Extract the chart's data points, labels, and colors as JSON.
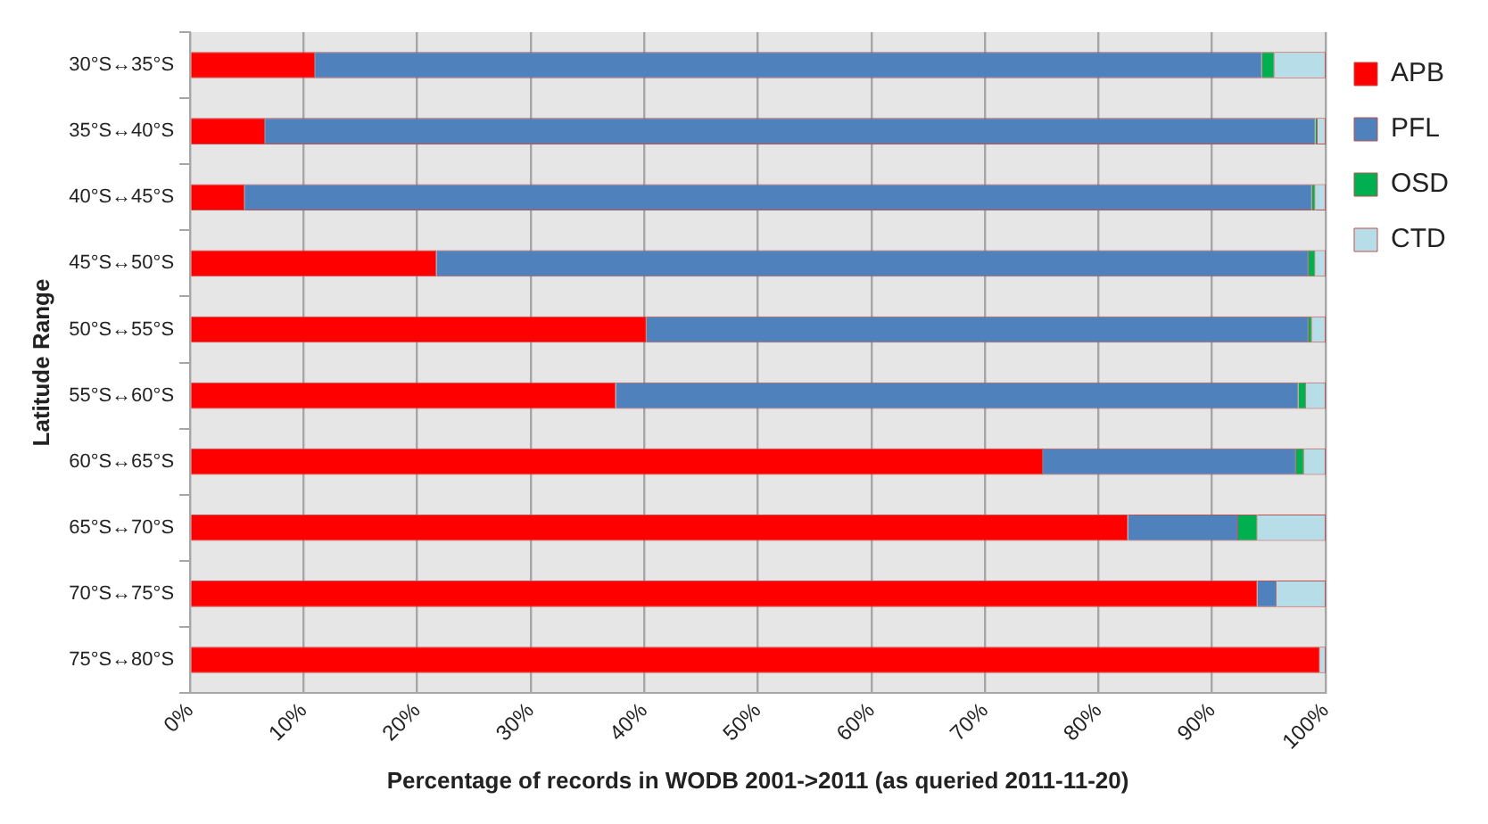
{
  "chart_data": {
    "type": "bar",
    "orientation": "horizontal",
    "stacked": true,
    "xlabel": "Percentage of records in WODB 2001->2011 (as queried 2011-11-20)",
    "ylabel": "Latitude Range",
    "categories": [
      "30°S↔35°S",
      "35°S↔40°S",
      "40°S↔45°S",
      "45°S↔50°S",
      "50°S↔55°S",
      "55°S↔60°S",
      "60°S↔65°S",
      "65°S↔70°S",
      "70°S↔75°S",
      "75°S↔80°S"
    ],
    "series": [
      {
        "name": "APB",
        "color": "#ff0000",
        "values": [
          11,
          6.6,
          4.8,
          21.7,
          40.2,
          37.5,
          75.1,
          82.6,
          94.0,
          99.5
        ]
      },
      {
        "name": "PFL",
        "color": "#4f81bd",
        "values": [
          83.4,
          92.5,
          94.0,
          76.8,
          58.3,
          60.1,
          22.3,
          9.7,
          1.7,
          0
        ]
      },
      {
        "name": "OSD",
        "color": "#00b050",
        "values": [
          1.1,
          0.2,
          0.3,
          0.6,
          0.3,
          0.7,
          0.7,
          1.7,
          0,
          0
        ]
      },
      {
        "name": "CTD",
        "color": "#b7dee8",
        "values": [
          4.5,
          0.7,
          0.9,
          0.9,
          1.2,
          1.7,
          1.9,
          6.0,
          4.3,
          0.5
        ]
      }
    ],
    "xlim": [
      0,
      100
    ],
    "xticks": [
      {
        "value": 0,
        "label": "0%"
      },
      {
        "value": 10,
        "label": "10%"
      },
      {
        "value": 20,
        "label": "20%"
      },
      {
        "value": 30,
        "label": "30%"
      },
      {
        "value": 40,
        "label": "40%"
      },
      {
        "value": 50,
        "label": "50%"
      },
      {
        "value": 60,
        "label": "60%"
      },
      {
        "value": 70,
        "label": "70%"
      },
      {
        "value": 80,
        "label": "80%"
      },
      {
        "value": 90,
        "label": "90%"
      },
      {
        "value": 100,
        "label": "100%"
      }
    ],
    "grid": "x",
    "legend": "top right"
  }
}
